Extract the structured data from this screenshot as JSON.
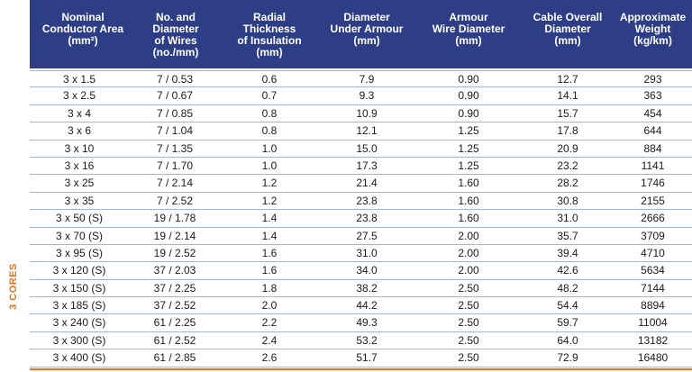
{
  "headers": [
    "Nominal\nConductor Area\n(mm²)",
    "No. and\nDiameter\nof Wires\n(no./mm)",
    "Radial\nThickness\nof Insulation\n(mm)",
    "Diameter\nUnder Armour\n(mm)",
    "Armour\nWire Diameter\n(mm)",
    "Cable Overall\nDiameter\n(mm)",
    "Approximate\nWeight\n(kg/km)"
  ],
  "side_label": "3 CORES",
  "rows": [
    [
      "3 x 1.5",
      "7 / 0.53",
      "0.6",
      "7.9",
      "0.90",
      "12.7",
      "293"
    ],
    [
      "3 x 2.5",
      "7 / 0.67",
      "0.7",
      "9.3",
      "0.90",
      "14.1",
      "363"
    ],
    [
      "3 x 4",
      "7 / 0.85",
      "0.8",
      "10.9",
      "0.90",
      "15.7",
      "454"
    ],
    [
      "3 x 6",
      "7 / 1.04",
      "0.8",
      "12.1",
      "1.25",
      "17.8",
      "644"
    ],
    [
      "3 x 10",
      "7 / 1.35",
      "1.0",
      "15.0",
      "1.25",
      "20.9",
      "884"
    ],
    [
      "3 x 16",
      "7 / 1.70",
      "1.0",
      "17.3",
      "1.25",
      "23.2",
      "1141"
    ],
    [
      "3 x 25",
      "7 / 2.14",
      "1.2",
      "21.4",
      "1.60",
      "28.2",
      "1746"
    ],
    [
      "3 x 35",
      "7 / 2.52",
      "1.2",
      "23.8",
      "1.60",
      "30.8",
      "2155"
    ],
    [
      "3 x 50 (S)",
      "19 / 1.78",
      "1.4",
      "23.8",
      "1.60",
      "31.0",
      "2666"
    ],
    [
      "3 x 70 (S)",
      "19 / 2.14",
      "1.4",
      "27.5",
      "2.00",
      "35.7",
      "3709"
    ],
    [
      "3 x 95 (S)",
      "19 / 2.52",
      "1.6",
      "31.0",
      "2.00",
      "39.4",
      "4710"
    ],
    [
      "3 x 120 (S)",
      "37 / 2.03",
      "1.6",
      "34.0",
      "2.00",
      "42.6",
      "5634"
    ],
    [
      "3 x 150 (S)",
      "37 / 2.25",
      "1.8",
      "38.2",
      "2.50",
      "48.2",
      "7144"
    ],
    [
      "3 x 185 (S)",
      "37 / 2.52",
      "2.0",
      "44.2",
      "2.50",
      "54.4",
      "8894"
    ],
    [
      "3 x 240 (S)",
      "61 / 2.25",
      "2.2",
      "49.3",
      "2.50",
      "59.7",
      "11004"
    ],
    [
      "3 x 300 (S)",
      "61 / 2.52",
      "2.4",
      "53.2",
      "2.50",
      "64.0",
      "13182"
    ],
    [
      "3 x 400 (S)",
      "61 / 2.85",
      "2.6",
      "51.7",
      "2.50",
      "72.9",
      "16480"
    ]
  ]
}
